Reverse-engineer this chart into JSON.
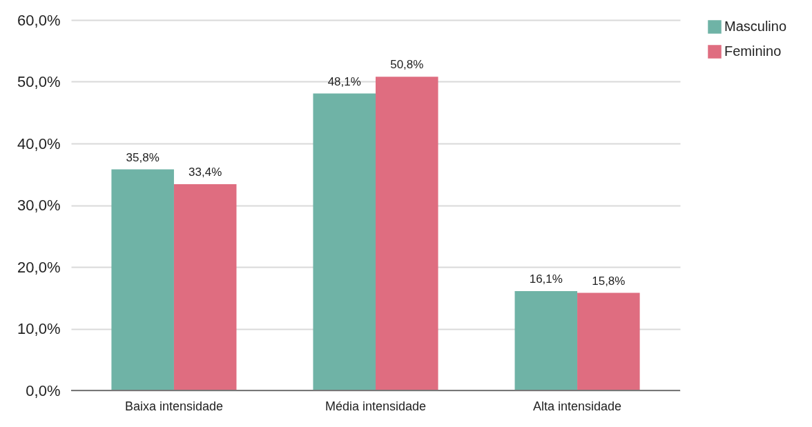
{
  "chart_data": {
    "type": "bar",
    "categories": [
      "Baixa intensidade",
      "Média intensidade",
      "Alta intensidade"
    ],
    "series": [
      {
        "name": "Masculino",
        "color": "#6fb3a6",
        "values": [
          35.8,
          48.1,
          16.1
        ],
        "value_labels": [
          "35,8%",
          "48,1%",
          "16,1%"
        ]
      },
      {
        "name": "Feminino",
        "color": "#df6d80",
        "values": [
          33.4,
          50.8,
          15.8
        ],
        "value_labels": [
          "33,4%",
          "50,8%",
          "15,8%"
        ]
      }
    ],
    "ylim": [
      0,
      60
    ],
    "yticks": [
      {
        "value": 0,
        "label": "0,0%"
      },
      {
        "value": 10,
        "label": "10,0%"
      },
      {
        "value": 20,
        "label": "20,0%"
      },
      {
        "value": 30,
        "label": "30,0%"
      },
      {
        "value": 40,
        "label": "40,0%"
      },
      {
        "value": 50,
        "label": "50,0%"
      },
      {
        "value": 60,
        "label": "60,0%"
      }
    ],
    "grid": "y",
    "legend": "top right"
  }
}
